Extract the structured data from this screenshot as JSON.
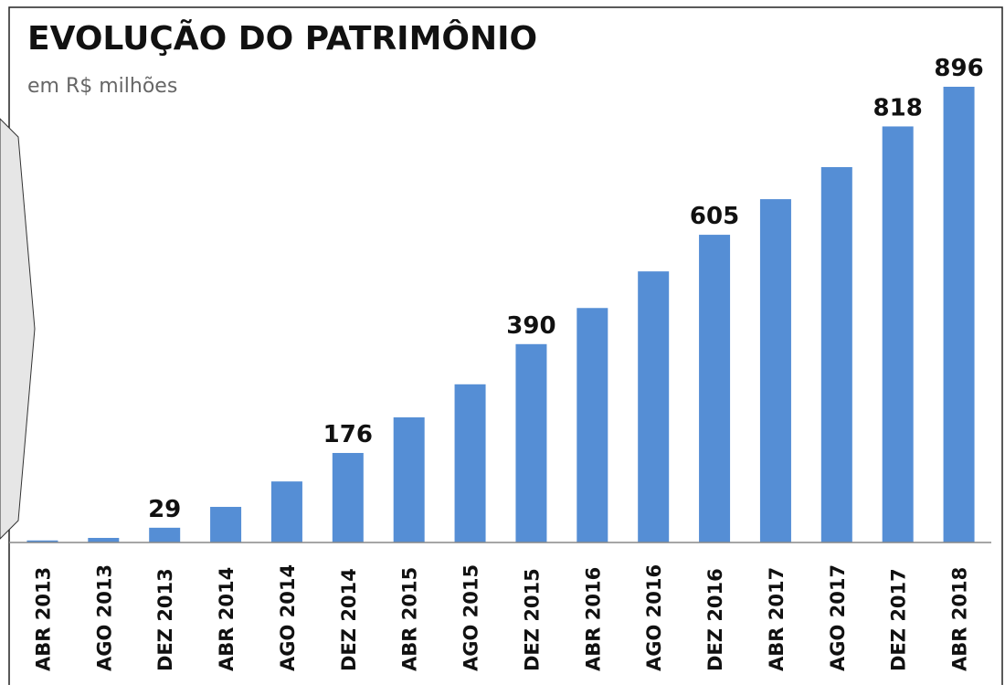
{
  "chart_data": {
    "type": "bar",
    "title": "EVOLUÇÃO DO PATRIMÔNIO",
    "subtitle": "em R$ milhões",
    "categories": [
      "ABR 2013",
      "AGO 2013",
      "DEZ 2013",
      "ABR 2014",
      "AGO 2014",
      "DEZ 2014",
      "ABR 2015",
      "AGO 2015",
      "DEZ 2015",
      "ABR 2016",
      "AGO 2016",
      "DEZ 2016",
      "ABR 2017",
      "AGO 2017",
      "DEZ 2017",
      "ABR 2018"
    ],
    "values": [
      4,
      9,
      29,
      70,
      120,
      176,
      246,
      311,
      390,
      461,
      533,
      605,
      675,
      738,
      818,
      896
    ],
    "value_labels": [
      null,
      null,
      "29",
      null,
      null,
      "176",
      null,
      null,
      "390",
      null,
      null,
      "605",
      null,
      null,
      "818",
      "896"
    ],
    "color": "#558ed5",
    "ylim": [
      0,
      896
    ]
  }
}
